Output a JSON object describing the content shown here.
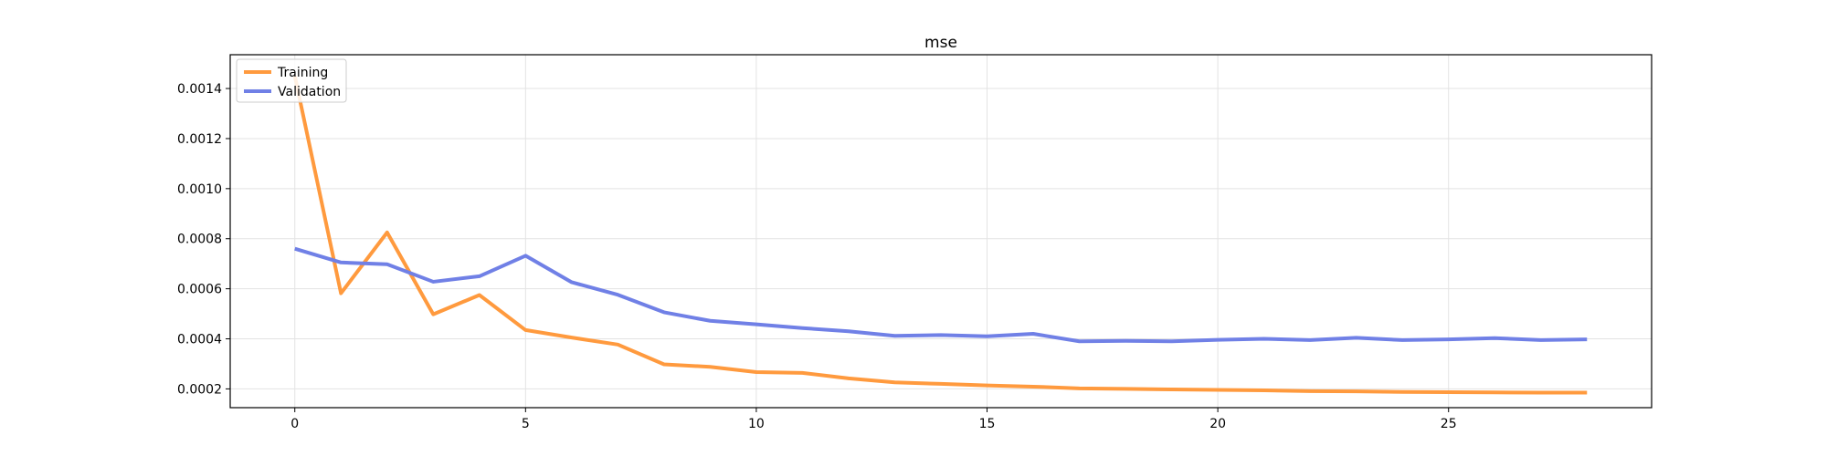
{
  "chart_data": {
    "type": "line",
    "title": "mse",
    "xlabel": "",
    "ylabel": "",
    "xlim": [
      -1.4,
      29.4
    ],
    "ylim": [
      0.000125,
      0.001535
    ],
    "xticks": [
      0,
      5,
      10,
      15,
      20,
      25
    ],
    "yticks": [
      0.0002,
      0.0004,
      0.0006,
      0.0008,
      0.001,
      0.0012,
      0.0014
    ],
    "ytick_labels": [
      "0.0002",
      "0.0004",
      "0.0006",
      "0.0008",
      "0.0010",
      "0.0012",
      "0.0014"
    ],
    "grid": true,
    "legend_position": "upper-left",
    "x": [
      0,
      1,
      2,
      3,
      4,
      5,
      6,
      7,
      8,
      9,
      10,
      11,
      12,
      13,
      14,
      15,
      16,
      17,
      18,
      19,
      20,
      21,
      22,
      23,
      24,
      25,
      26,
      27,
      28
    ],
    "series": [
      {
        "name": "Training",
        "color": "#ff9a3e",
        "values": [
          0.00145,
          0.000582,
          0.000825,
          0.000498,
          0.000575,
          0.000435,
          0.000405,
          0.000377,
          0.000298,
          0.000288,
          0.000267,
          0.000264,
          0.000242,
          0.000226,
          0.00022,
          0.000214,
          0.000209,
          0.000202,
          0.0002,
          0.000198,
          0.000196,
          0.000194,
          0.000191,
          0.00019,
          0.000188,
          0.000187,
          0.000186,
          0.000185,
          0.000185
        ]
      },
      {
        "name": "Validation",
        "color": "#7080e6",
        "values": [
          0.00076,
          0.000705,
          0.000698,
          0.000628,
          0.00065,
          0.000732,
          0.000626,
          0.000576,
          0.000506,
          0.000472,
          0.000458,
          0.000443,
          0.00043,
          0.000412,
          0.000415,
          0.00041,
          0.00042,
          0.00039,
          0.000392,
          0.00039,
          0.000396,
          0.0004,
          0.000395,
          0.000404,
          0.000395,
          0.000398,
          0.000403,
          0.000395,
          0.000398
        ]
      }
    ]
  }
}
